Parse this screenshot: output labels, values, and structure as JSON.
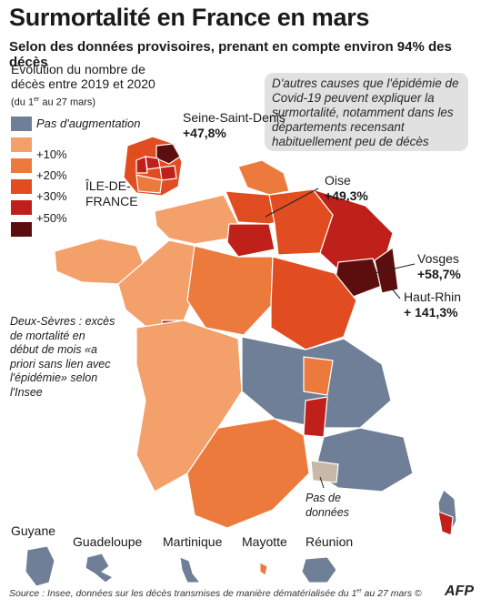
{
  "title": "Surmortalité en France en mars",
  "subtitle": "Selon des données provisoires, prenant en compte environ 94% des décès",
  "evolution_label": "Évolution du nombre de décès entre 2019 et 2020",
  "dates_prefix": "(du 1",
  "dates_sup": "er",
  "dates_suffix": " au 27 mars)",
  "callout": "D'autres causes que l'épidémie de Covid-19 peuvent expliquer la surmortalité, notamment dans les départements recensant habituellement peu de décès",
  "legend": [
    {
      "label": "Pas d'augmentation",
      "color": "#6f7f98"
    },
    {
      "label": "+10%",
      "color": "#f4a06a"
    },
    {
      "label": "+20%",
      "color": "#ec7a3c"
    },
    {
      "label": "+30%",
      "color": "#e14d20"
    },
    {
      "label": "+50%",
      "color": "#c0201a"
    },
    {
      "label": "",
      "color": "#5c0e0e"
    }
  ],
  "no_data_color": "#c8b8a8",
  "labels": {
    "seine_saint_denis_name": "Seine-Saint-Denis",
    "seine_saint_denis_value": "+47,8%",
    "ile_de_france": "ÎLE-DE-FRANCE",
    "oise_name": "Oise",
    "oise_value": "+49,3%",
    "vosges_name": "Vosges",
    "vosges_value": "+58,7%",
    "haut_rhin_name": "Haut-Rhin",
    "haut_rhin_value": "+ 141,3%",
    "deux_sevres_note": "Deux-Sèvres : excès de mortalité en début de mois «a priori sans lien avec l'épidémie» selon l'Insee",
    "pas_de_donnees": "Pas de données"
  },
  "overseas": [
    "Guyane",
    "Guadeloupe",
    "Martinique",
    "Mayotte",
    "Réunion"
  ],
  "source_prefix": "Source : Insee, données sur les décès transmises de manière dématérialisée du 1",
  "source_sup": "er",
  "source_suffix": " au 27 mars",
  "copyright": "©",
  "agency": "AFP"
}
